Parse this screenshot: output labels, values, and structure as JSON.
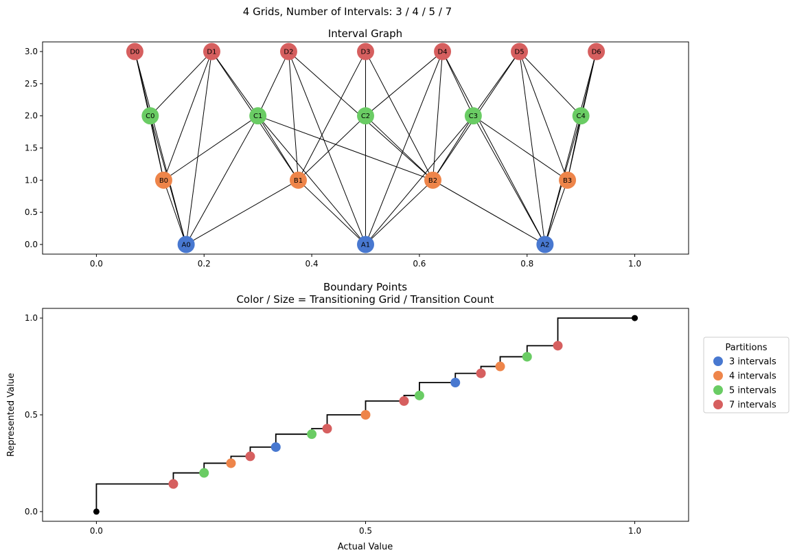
{
  "figure": {
    "suptitle": "4 Grids, Number of Intervals: 3 / 4 / 5 / 7"
  },
  "chart_data": [
    {
      "type": "network",
      "title": "Interval Graph",
      "xlim": [
        -0.1,
        1.1
      ],
      "ylim": [
        -0.15,
        3.15
      ],
      "x_ticks": [
        0.0,
        0.2,
        0.4,
        0.6,
        0.8,
        1.0
      ],
      "x_tick_labels": [
        "0.0",
        "0.2",
        "0.4",
        "0.6",
        "0.8",
        "1.0"
      ],
      "y_ticks": [
        0.0,
        0.5,
        1.0,
        1.5,
        2.0,
        2.5,
        3.0
      ],
      "y_tick_labels": [
        "0.0",
        "0.5",
        "1.0",
        "1.5",
        "2.0",
        "2.5",
        "3.0"
      ],
      "grid_colors": {
        "A": "#4878d0",
        "B": "#ee854a",
        "C": "#6acc64",
        "D": "#d65f5f"
      },
      "nodes": [
        {
          "id": "A0",
          "label": "A0",
          "grid": "A",
          "x": 0.1667,
          "y": 0
        },
        {
          "id": "A1",
          "label": "A1",
          "grid": "A",
          "x": 0.5,
          "y": 0
        },
        {
          "id": "A2",
          "label": "A2",
          "grid": "A",
          "x": 0.8333,
          "y": 0
        },
        {
          "id": "B0",
          "label": "B0",
          "grid": "B",
          "x": 0.125,
          "y": 1
        },
        {
          "id": "B1",
          "label": "B1",
          "grid": "B",
          "x": 0.375,
          "y": 1
        },
        {
          "id": "B2",
          "label": "B2",
          "grid": "B",
          "x": 0.625,
          "y": 1
        },
        {
          "id": "B3",
          "label": "B3",
          "grid": "B",
          "x": 0.875,
          "y": 1
        },
        {
          "id": "C0",
          "label": "C0",
          "grid": "C",
          "x": 0.1,
          "y": 2
        },
        {
          "id": "C1",
          "label": "C1",
          "grid": "C",
          "x": 0.3,
          "y": 2
        },
        {
          "id": "C2",
          "label": "C2",
          "grid": "C",
          "x": 0.5,
          "y": 2
        },
        {
          "id": "C3",
          "label": "C3",
          "grid": "C",
          "x": 0.7,
          "y": 2
        },
        {
          "id": "C4",
          "label": "C4",
          "grid": "C",
          "x": 0.9,
          "y": 2
        },
        {
          "id": "D0",
          "label": "D0",
          "grid": "D",
          "x": 0.0714,
          "y": 3
        },
        {
          "id": "D1",
          "label": "D1",
          "grid": "D",
          "x": 0.2143,
          "y": 3
        },
        {
          "id": "D2",
          "label": "D2",
          "grid": "D",
          "x": 0.3571,
          "y": 3
        },
        {
          "id": "D3",
          "label": "D3",
          "grid": "D",
          "x": 0.5,
          "y": 3
        },
        {
          "id": "D4",
          "label": "D4",
          "grid": "D",
          "x": 0.6429,
          "y": 3
        },
        {
          "id": "D5",
          "label": "D5",
          "grid": "D",
          "x": 0.7857,
          "y": 3
        },
        {
          "id": "D6",
          "label": "D6",
          "grid": "D",
          "x": 0.9286,
          "y": 3
        }
      ],
      "edges": [
        [
          "A0",
          "B0"
        ],
        [
          "A0",
          "C0"
        ],
        [
          "A0",
          "D0"
        ],
        [
          "A0",
          "B1"
        ],
        [
          "A0",
          "C1"
        ],
        [
          "A0",
          "D1"
        ],
        [
          "B0",
          "C0"
        ],
        [
          "B0",
          "D0"
        ],
        [
          "B0",
          "C1"
        ],
        [
          "B0",
          "D1"
        ],
        [
          "C0",
          "D0"
        ],
        [
          "C0",
          "D1"
        ],
        [
          "A1",
          "B1"
        ],
        [
          "A1",
          "B2"
        ],
        [
          "A1",
          "C1"
        ],
        [
          "A1",
          "C2"
        ],
        [
          "A1",
          "C3"
        ],
        [
          "A1",
          "D2"
        ],
        [
          "A1",
          "D3"
        ],
        [
          "A1",
          "D4"
        ],
        [
          "B1",
          "C1"
        ],
        [
          "B1",
          "C2"
        ],
        [
          "B1",
          "D1"
        ],
        [
          "B1",
          "D2"
        ],
        [
          "B1",
          "D3"
        ],
        [
          "C1",
          "D1"
        ],
        [
          "C1",
          "D2"
        ],
        [
          "C1",
          "B2"
        ],
        [
          "B2",
          "C2"
        ],
        [
          "B2",
          "C3"
        ],
        [
          "B2",
          "D3"
        ],
        [
          "B2",
          "D4"
        ],
        [
          "B2",
          "D5"
        ],
        [
          "B2",
          "D2"
        ],
        [
          "C2",
          "D3"
        ],
        [
          "C2",
          "D4"
        ],
        [
          "C3",
          "D4"
        ],
        [
          "C3",
          "D5"
        ],
        [
          "A2",
          "B2"
        ],
        [
          "A2",
          "B3"
        ],
        [
          "A2",
          "C3"
        ],
        [
          "A2",
          "C4"
        ],
        [
          "A2",
          "D4"
        ],
        [
          "A2",
          "D5"
        ],
        [
          "A2",
          "D6"
        ],
        [
          "B3",
          "C3"
        ],
        [
          "B3",
          "C4"
        ],
        [
          "B3",
          "D5"
        ],
        [
          "B3",
          "D6"
        ],
        [
          "C4",
          "D5"
        ],
        [
          "C4",
          "D6"
        ]
      ]
    },
    {
      "type": "step+scatter",
      "title": "Boundary Points",
      "subtitle": "Color / Size = Transitioning Grid / Transition Count",
      "xlabel": "Actual Value",
      "ylabel": "Represented Value",
      "xlim": [
        -0.1,
        1.1
      ],
      "ylim": [
        -0.05,
        1.05
      ],
      "x_ticks": [
        0.0,
        0.5,
        1.0
      ],
      "x_tick_labels": [
        "0.0",
        "0.5",
        "1.0"
      ],
      "y_ticks": [
        0.0,
        0.5,
        1.0
      ],
      "y_tick_labels": [
        "0.0",
        "0.5",
        "1.0"
      ],
      "step_x": [
        0,
        0.1429,
        0.2,
        0.25,
        0.2857,
        0.3333,
        0.4,
        0.4286,
        0.5,
        0.5714,
        0.6,
        0.6667,
        0.7143,
        0.75,
        0.8,
        0.8571,
        1
      ],
      "step_y": [
        0,
        0.1429,
        0.2,
        0.25,
        0.2857,
        0.3333,
        0.4,
        0.4286,
        0.5,
        0.5714,
        0.6,
        0.6667,
        0.7143,
        0.75,
        0.8,
        0.8571,
        1
      ],
      "endpoints": {
        "x": [
          0,
          1
        ],
        "y": [
          0,
          1
        ],
        "color": "#000000"
      },
      "legend": {
        "title": "Partitions",
        "placement": "outside right"
      },
      "series": [
        {
          "name": "3 intervals",
          "color": "#4878d0",
          "x": [
            0.3333,
            0.6667
          ],
          "y": [
            0.3333,
            0.6667
          ]
        },
        {
          "name": "4 intervals",
          "color": "#ee854a",
          "x": [
            0.25,
            0.5,
            0.75
          ],
          "y": [
            0.25,
            0.5,
            0.75
          ]
        },
        {
          "name": "5 intervals",
          "color": "#6acc64",
          "x": [
            0.2,
            0.4,
            0.6,
            0.8
          ],
          "y": [
            0.2,
            0.4,
            0.6,
            0.8
          ]
        },
        {
          "name": "7 intervals",
          "color": "#d65f5f",
          "x": [
            0.1429,
            0.2857,
            0.4286,
            0.5714,
            0.7143,
            0.8571
          ],
          "y": [
            0.1429,
            0.2857,
            0.4286,
            0.5714,
            0.7143,
            0.8571
          ]
        }
      ]
    }
  ]
}
